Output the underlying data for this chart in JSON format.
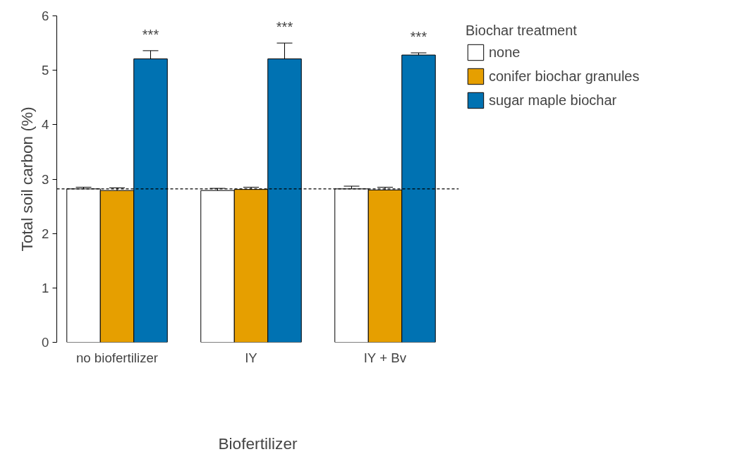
{
  "chart_data": {
    "type": "bar",
    "xlabel": "Biofertilizer",
    "ylabel": "Total soil carbon (%)",
    "legend_title": "Biochar treatment",
    "categories": [
      "no biofertilizer",
      "IY",
      "IY + Bv"
    ],
    "series": [
      {
        "name": "none",
        "color": "#ffffff",
        "values": [
          2.82,
          2.79,
          2.82
        ],
        "errors": [
          0.03,
          0.04,
          0.05
        ]
      },
      {
        "name": "conifer biochar granules",
        "color": "#e69f00",
        "values": [
          2.79,
          2.81,
          2.8
        ],
        "errors": [
          0.05,
          0.04,
          0.05
        ]
      },
      {
        "name": "sugar maple biochar",
        "color": "#0072b2",
        "values": [
          5.21,
          5.21,
          5.28
        ],
        "errors": [
          0.15,
          0.29,
          0.04
        ]
      }
    ],
    "ylim": [
      0,
      6
    ],
    "yticks": [
      0,
      1,
      2,
      3,
      4,
      5,
      6
    ],
    "grid": false,
    "legend": "top right",
    "ref_lines": [
      {
        "axis": "y",
        "value": 2.82,
        "line_style": "dashed"
      }
    ],
    "annotations": [
      "***",
      "***",
      "***"
    ]
  }
}
